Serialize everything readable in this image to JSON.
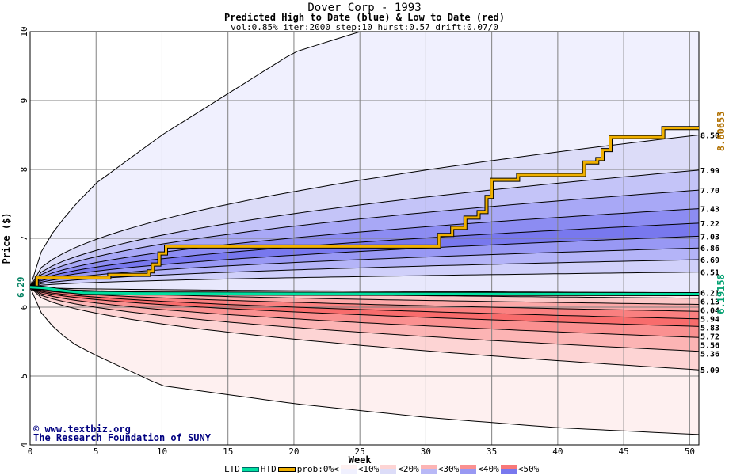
{
  "chart_data": {
    "type": "area",
    "title": "Dover Corp - 1993",
    "subtitle": "Predicted High to Date (blue) &  Low to Date (red)",
    "params": "vol:0.85% iter:2000 step:10 hurst:0.57 drift:0.07/0",
    "xlabel": "Week",
    "ylabel": "Price ($)",
    "xlim": [
      0,
      50.7
    ],
    "ylim": [
      4,
      10
    ],
    "xticks": [
      0,
      5,
      10,
      15,
      20,
      25,
      30,
      35,
      40,
      45,
      50
    ],
    "yticks": [
      4,
      5,
      6,
      7,
      8,
      9,
      10
    ],
    "start_price": 6.29,
    "start_label": "6.29",
    "grid": true,
    "max_envelope": [
      [
        0,
        6.29
      ],
      [
        1,
        6.9
      ],
      [
        3,
        7.4
      ],
      [
        5,
        7.8
      ],
      [
        10,
        8.5
      ],
      [
        15,
        9.1
      ],
      [
        20,
        9.7
      ],
      [
        25,
        10.0
      ],
      [
        27,
        10.1
      ]
    ],
    "min_envelope": [
      [
        0,
        6.29
      ],
      [
        1,
        5.85
      ],
      [
        3,
        5.5
      ],
      [
        5,
        5.3
      ],
      [
        10,
        4.86
      ],
      [
        20,
        4.6
      ],
      [
        30,
        4.4
      ],
      [
        40,
        4.25
      ],
      [
        50.7,
        4.15
      ]
    ],
    "high_quantiles": [
      8.5,
      7.99,
      7.7,
      7.43,
      7.22,
      7.03,
      6.86,
      6.69,
      6.51,
      6.21
    ],
    "high_labels": [
      "8.50",
      "7.99",
      "7.70",
      "7.43",
      "7.22",
      "7.03",
      "6.86",
      "6.69",
      "6.51",
      "6.21"
    ],
    "high_colors": [
      "#f0f0fe",
      "#dcdcf8",
      "#c4c4f8",
      "#a8a8f6",
      "#8c8cf2",
      "#7878ee",
      "#9898f4",
      "#b4b4f8",
      "#d0d0fa",
      "#e8e8fc",
      "#f6f6ff"
    ],
    "low_quantiles": [
      6.13,
      6.04,
      5.94,
      5.83,
      5.72,
      5.56,
      5.36,
      5.09
    ],
    "low_labels": [
      "6.13",
      "6.04",
      "5.94",
      "5.83",
      "5.72",
      "5.56",
      "5.36",
      "5.09"
    ],
    "low_colors": [
      "#fde8e8",
      "#fcc8c8",
      "#fca8a8",
      "#fa8080",
      "#f86c6c",
      "#fa9090",
      "#fcb4b4",
      "#fdd4d4",
      "#fef0f0"
    ],
    "htd": {
      "name": "HTD",
      "color": "#f0b000",
      "end_label": "8.60653",
      "points": [
        [
          0,
          6.29
        ],
        [
          0.5,
          6.43
        ],
        [
          6,
          6.47
        ],
        [
          9,
          6.52
        ],
        [
          9.3,
          6.62
        ],
        [
          9.8,
          6.78
        ],
        [
          10.3,
          6.88
        ],
        [
          30.5,
          6.88
        ],
        [
          31,
          7.05
        ],
        [
          32,
          7.15
        ],
        [
          33,
          7.3
        ],
        [
          34,
          7.38
        ],
        [
          34.6,
          7.6
        ],
        [
          35,
          7.85
        ],
        [
          37,
          7.92
        ],
        [
          41.2,
          7.92
        ],
        [
          42,
          8.1
        ],
        [
          43,
          8.15
        ],
        [
          43.4,
          8.28
        ],
        [
          44,
          8.47
        ],
        [
          48,
          8.6
        ],
        [
          50.7,
          8.6
        ]
      ]
    },
    "ltd": {
      "name": "LTD",
      "color": "#00e0a0",
      "end_label": "6.19158",
      "points": [
        [
          0,
          6.29
        ],
        [
          1,
          6.28
        ],
        [
          2.5,
          6.24
        ],
        [
          4,
          6.21
        ],
        [
          8,
          6.2
        ],
        [
          20,
          6.195
        ],
        [
          50.7,
          6.19
        ]
      ]
    },
    "legend": {
      "ltd": "LTD",
      "htd": "HTD",
      "prob": "prob:0%<",
      "bins": [
        "<10%",
        "<20%",
        "<30%",
        "<40%",
        "<50%"
      ],
      "red": [
        "#fef0f0",
        "#fdd4d4",
        "#fcb4b4",
        "#fa9090",
        "#f87878"
      ],
      "blue": [
        "#f0f0fe",
        "#dcdcf8",
        "#b8b8f6",
        "#9898f2",
        "#7878ee"
      ]
    },
    "credit1": "www.textbiz.org",
    "credit2": "The Research Foundation of SUNY"
  }
}
